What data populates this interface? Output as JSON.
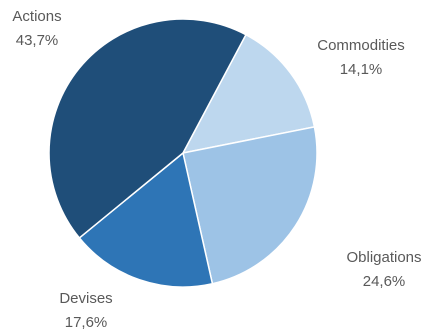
{
  "chart_data": {
    "type": "pie",
    "title": "",
    "slices": [
      {
        "label": "Commodities",
        "value": 14.1,
        "value_label": "14,1%",
        "color": "#bdd7ee"
      },
      {
        "label": "Obligations",
        "value": 24.6,
        "value_label": "24,6%",
        "color": "#9dc3e6"
      },
      {
        "label": "Devises",
        "value": 17.6,
        "value_label": "17,6%",
        "color": "#2e75b6"
      },
      {
        "label": "Actions",
        "value": 43.7,
        "value_label": "43,7%",
        "color": "#1f4e79"
      }
    ],
    "start_angle_deg": 28,
    "direction": "clockwise",
    "legend": "none"
  }
}
